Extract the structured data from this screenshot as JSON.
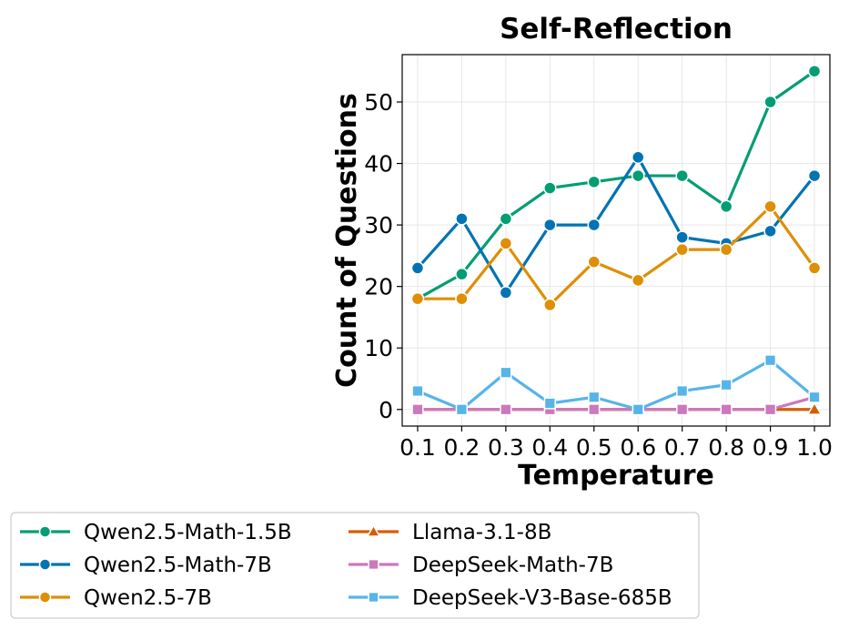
{
  "chart_data": {
    "type": "line",
    "title": "Self-Reflection",
    "xlabel": "Temperature",
    "ylabel": "Count of Questions",
    "x": [
      0.1,
      0.2,
      0.3,
      0.4,
      0.5,
      0.6,
      0.7,
      0.8,
      0.9,
      1.0
    ],
    "x_tick_labels": [
      "0.1",
      "0.2",
      "0.3",
      "0.4",
      "0.5",
      "0.6",
      "0.7",
      "0.8",
      "0.9",
      "1.0"
    ],
    "y_ticks": [
      0,
      10,
      20,
      30,
      40,
      50
    ],
    "y_tick_labels": [
      "0",
      "10",
      "20",
      "30",
      "40",
      "50"
    ],
    "xlim": [
      0.065,
      1.035
    ],
    "ylim": [
      -2.7,
      57.7
    ],
    "grid": true,
    "legend_position": "bottom-outside",
    "series": [
      {
        "name": "Qwen2.5-Math-1.5B",
        "color": "#029e73",
        "marker": "circle",
        "values": [
          18,
          22,
          31,
          36,
          37,
          38,
          38,
          33,
          50,
          55
        ]
      },
      {
        "name": "Qwen2.5-Math-7B",
        "color": "#0173b2",
        "marker": "circle",
        "values": [
          23,
          31,
          19,
          30,
          30,
          41,
          28,
          27,
          29,
          38
        ]
      },
      {
        "name": "Qwen2.5-7B",
        "color": "#de8f05",
        "marker": "circle",
        "values": [
          18,
          18,
          27,
          17,
          24,
          21,
          26,
          26,
          33,
          23
        ]
      },
      {
        "name": "Llama-3.1-8B",
        "color": "#d55e00",
        "marker": "triangle",
        "values": [
          0,
          0,
          0,
          0,
          0,
          0,
          0,
          0,
          0,
          0
        ]
      },
      {
        "name": "DeepSeek-Math-7B",
        "color": "#cc78bc",
        "marker": "square",
        "values": [
          0,
          0,
          0,
          0,
          0,
          0,
          0,
          0,
          0,
          2
        ]
      },
      {
        "name": "DeepSeek-V3-Base-685B",
        "color": "#56b4e9",
        "marker": "square",
        "values": [
          3,
          0,
          6,
          1,
          2,
          0,
          3,
          4,
          8,
          2
        ]
      }
    ]
  }
}
